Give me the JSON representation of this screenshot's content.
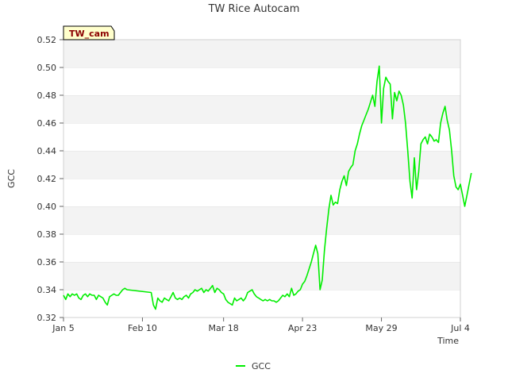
{
  "chart_data": {
    "type": "line",
    "title": "TW Rice Autocam",
    "xlabel": "Time",
    "ylabel": "GCC",
    "badge": "TW_cam",
    "ylim": [
      0.32,
      0.52
    ],
    "yticks": [
      0.32,
      0.34,
      0.36,
      0.38,
      0.4,
      0.42,
      0.44,
      0.46,
      0.48,
      0.5,
      0.52
    ],
    "xlim": [
      "2024-01-05",
      "2024-07-04"
    ],
    "xticks": [
      {
        "date": "2024-01-05",
        "label": "Jan 5"
      },
      {
        "date": "2024-02-10",
        "label": "Feb 10"
      },
      {
        "date": "2024-03-18",
        "label": "Mar 18"
      },
      {
        "date": "2024-04-23",
        "label": "Apr 23"
      },
      {
        "date": "2024-05-29",
        "label": "May 29"
      },
      {
        "date": "2024-07-04",
        "label": "Jul 4"
      }
    ],
    "grid": "horizontal bands",
    "legend_position": "bottom-center",
    "series": [
      {
        "name": "GCC",
        "color": "#00ee00",
        "points": [
          [
            "2024-01-05",
            0.336
          ],
          [
            "2024-01-06",
            0.333
          ],
          [
            "2024-01-07",
            0.337
          ],
          [
            "2024-01-08",
            0.335
          ],
          [
            "2024-01-09",
            0.337
          ],
          [
            "2024-01-10",
            0.336
          ],
          [
            "2024-01-11",
            0.337
          ],
          [
            "2024-01-12",
            0.334
          ],
          [
            "2024-01-13",
            0.333
          ],
          [
            "2024-01-14",
            0.336
          ],
          [
            "2024-01-15",
            0.337
          ],
          [
            "2024-01-16",
            0.335
          ],
          [
            "2024-01-17",
            0.337
          ],
          [
            "2024-01-18",
            0.336
          ],
          [
            "2024-01-19",
            0.336
          ],
          [
            "2024-01-20",
            0.333
          ],
          [
            "2024-01-21",
            0.336
          ],
          [
            "2024-01-22",
            0.335
          ],
          [
            "2024-01-23",
            0.334
          ],
          [
            "2024-01-24",
            0.331
          ],
          [
            "2024-01-25",
            0.329
          ],
          [
            "2024-01-26",
            0.335
          ],
          [
            "2024-01-27",
            0.336
          ],
          [
            "2024-01-28",
            0.337
          ],
          [
            "2024-01-29",
            0.336
          ],
          [
            "2024-01-30",
            0.336
          ],
          [
            "2024-01-31",
            0.338
          ],
          [
            "2024-02-01",
            0.34
          ],
          [
            "2024-02-02",
            0.341
          ],
          [
            "2024-02-03",
            0.34
          ],
          [
            "2024-02-14",
            0.338
          ],
          [
            "2024-02-15",
            0.329
          ],
          [
            "2024-02-16",
            0.326
          ],
          [
            "2024-02-17",
            0.334
          ],
          [
            "2024-02-18",
            0.332
          ],
          [
            "2024-02-19",
            0.331
          ],
          [
            "2024-02-20",
            0.334
          ],
          [
            "2024-02-21",
            0.333
          ],
          [
            "2024-02-22",
            0.332
          ],
          [
            "2024-02-23",
            0.335
          ],
          [
            "2024-02-24",
            0.338
          ],
          [
            "2024-02-25",
            0.334
          ],
          [
            "2024-02-26",
            0.333
          ],
          [
            "2024-02-27",
            0.334
          ],
          [
            "2024-02-28",
            0.333
          ],
          [
            "2024-02-29",
            0.335
          ],
          [
            "2024-03-01",
            0.336
          ],
          [
            "2024-03-02",
            0.334
          ],
          [
            "2024-03-03",
            0.337
          ],
          [
            "2024-03-04",
            0.338
          ],
          [
            "2024-03-05",
            0.34
          ],
          [
            "2024-03-06",
            0.339
          ],
          [
            "2024-03-07",
            0.34
          ],
          [
            "2024-03-08",
            0.341
          ],
          [
            "2024-03-09",
            0.338
          ],
          [
            "2024-03-10",
            0.34
          ],
          [
            "2024-03-11",
            0.339
          ],
          [
            "2024-03-12",
            0.341
          ],
          [
            "2024-03-13",
            0.343
          ],
          [
            "2024-03-14",
            0.338
          ],
          [
            "2024-03-15",
            0.341
          ],
          [
            "2024-03-16",
            0.34
          ],
          [
            "2024-03-17",
            0.338
          ],
          [
            "2024-03-18",
            0.337
          ],
          [
            "2024-03-19",
            0.333
          ],
          [
            "2024-03-20",
            0.331
          ],
          [
            "2024-03-21",
            0.33
          ],
          [
            "2024-03-22",
            0.329
          ],
          [
            "2024-03-23",
            0.334
          ],
          [
            "2024-03-24",
            0.332
          ],
          [
            "2024-03-25",
            0.333
          ],
          [
            "2024-03-26",
            0.334
          ],
          [
            "2024-03-27",
            0.332
          ],
          [
            "2024-03-28",
            0.334
          ],
          [
            "2024-03-29",
            0.338
          ],
          [
            "2024-03-30",
            0.339
          ],
          [
            "2024-03-31",
            0.34
          ],
          [
            "2024-04-01",
            0.337
          ],
          [
            "2024-04-02",
            0.335
          ],
          [
            "2024-04-03",
            0.334
          ],
          [
            "2024-04-04",
            0.333
          ],
          [
            "2024-04-05",
            0.332
          ],
          [
            "2024-04-06",
            0.333
          ],
          [
            "2024-04-07",
            0.332
          ],
          [
            "2024-04-08",
            0.333
          ],
          [
            "2024-04-09",
            0.332
          ],
          [
            "2024-04-10",
            0.332
          ],
          [
            "2024-04-11",
            0.331
          ],
          [
            "2024-04-12",
            0.332
          ],
          [
            "2024-04-13",
            0.334
          ],
          [
            "2024-04-14",
            0.336
          ],
          [
            "2024-04-15",
            0.335
          ],
          [
            "2024-04-16",
            0.337
          ],
          [
            "2024-04-17",
            0.335
          ],
          [
            "2024-04-18",
            0.341
          ],
          [
            "2024-04-19",
            0.336
          ],
          [
            "2024-04-20",
            0.337
          ],
          [
            "2024-04-21",
            0.339
          ],
          [
            "2024-04-22",
            0.34
          ],
          [
            "2024-04-23",
            0.344
          ],
          [
            "2024-04-24",
            0.346
          ],
          [
            "2024-04-25",
            0.35
          ],
          [
            "2024-04-26",
            0.355
          ],
          [
            "2024-04-27",
            0.36
          ],
          [
            "2024-04-28",
            0.366
          ],
          [
            "2024-04-29",
            0.372
          ],
          [
            "2024-04-30",
            0.366
          ],
          [
            "2024-05-01",
            0.34
          ],
          [
            "2024-05-02",
            0.347
          ],
          [
            "2024-05-03",
            0.368
          ],
          [
            "2024-05-04",
            0.384
          ],
          [
            "2024-05-05",
            0.398
          ],
          [
            "2024-05-06",
            0.408
          ],
          [
            "2024-05-07",
            0.401
          ],
          [
            "2024-05-08",
            0.403
          ],
          [
            "2024-05-09",
            0.402
          ],
          [
            "2024-05-10",
            0.412
          ],
          [
            "2024-05-11",
            0.418
          ],
          [
            "2024-05-12",
            0.422
          ],
          [
            "2024-05-13",
            0.415
          ],
          [
            "2024-05-14",
            0.425
          ],
          [
            "2024-05-15",
            0.428
          ],
          [
            "2024-05-16",
            0.43
          ],
          [
            "2024-05-17",
            0.44
          ],
          [
            "2024-05-18",
            0.445
          ],
          [
            "2024-05-19",
            0.452
          ],
          [
            "2024-05-20",
            0.458
          ],
          [
            "2024-05-21",
            0.462
          ],
          [
            "2024-05-22",
            0.466
          ],
          [
            "2024-05-23",
            0.47
          ],
          [
            "2024-05-24",
            0.475
          ],
          [
            "2024-05-25",
            0.48
          ],
          [
            "2024-05-26",
            0.472
          ],
          [
            "2024-05-27",
            0.49
          ],
          [
            "2024-05-28",
            0.501
          ],
          [
            "2024-05-29",
            0.46
          ],
          [
            "2024-05-30",
            0.485
          ],
          [
            "2024-05-31",
            0.493
          ],
          [
            "2024-06-01",
            0.49
          ],
          [
            "2024-06-02",
            0.488
          ],
          [
            "2024-06-03",
            0.463
          ],
          [
            "2024-06-04",
            0.482
          ],
          [
            "2024-06-05",
            0.476
          ],
          [
            "2024-06-06",
            0.483
          ],
          [
            "2024-06-07",
            0.48
          ],
          [
            "2024-06-08",
            0.473
          ],
          [
            "2024-06-09",
            0.46
          ],
          [
            "2024-06-10",
            0.44
          ],
          [
            "2024-06-11",
            0.418
          ],
          [
            "2024-06-12",
            0.406
          ],
          [
            "2024-06-13",
            0.435
          ],
          [
            "2024-06-14",
            0.412
          ],
          [
            "2024-06-15",
            0.425
          ],
          [
            "2024-06-16",
            0.445
          ],
          [
            "2024-06-17",
            0.448
          ],
          [
            "2024-06-18",
            0.45
          ],
          [
            "2024-06-19",
            0.445
          ],
          [
            "2024-06-20",
            0.452
          ],
          [
            "2024-06-21",
            0.45
          ],
          [
            "2024-06-22",
            0.447
          ],
          [
            "2024-06-23",
            0.448
          ],
          [
            "2024-06-24",
            0.446
          ],
          [
            "2024-06-25",
            0.46
          ],
          [
            "2024-06-26",
            0.467
          ],
          [
            "2024-06-27",
            0.472
          ],
          [
            "2024-06-28",
            0.462
          ],
          [
            "2024-06-29",
            0.455
          ],
          [
            "2024-06-30",
            0.44
          ],
          [
            "2024-07-01",
            0.422
          ],
          [
            "2024-07-02",
            0.414
          ],
          [
            "2024-07-03",
            0.412
          ],
          [
            "2024-07-04",
            0.416
          ],
          [
            "2024-07-05",
            0.408
          ],
          [
            "2024-07-06",
            0.4
          ],
          [
            "2024-07-07",
            0.408
          ],
          [
            "2024-07-08",
            0.416
          ],
          [
            "2024-07-09",
            0.424
          ]
        ]
      }
    ]
  }
}
